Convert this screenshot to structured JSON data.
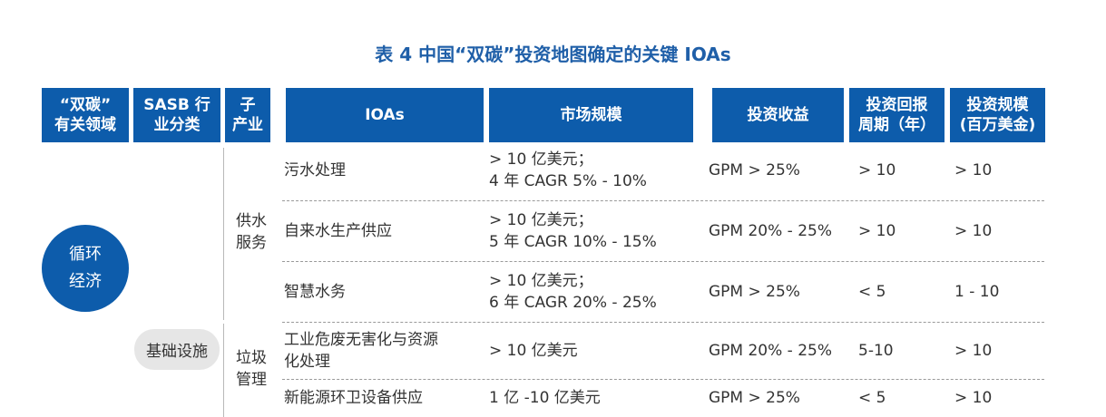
{
  "title": "表 4  中国“双碳”投资地图确定的关键 IOAs",
  "headers": [
    "“双碳”\n有关领域",
    "SASB 行\n业分类",
    "子\n产业",
    "IOAs",
    "市场规模",
    "投资收益",
    "投资回报\n周期（年）",
    "投资规模\n(百万美金)"
  ],
  "domain_label": "循环\n经济",
  "sasb_label": "基础设施",
  "subindustries": [
    "供水\n服务",
    "垃圾\n管理"
  ],
  "rows": [
    {
      "ioa": "污水处理",
      "market": "> 10 亿美元；\n4 年 CAGR 5% - 10%",
      "return": "GPM > 25%",
      "period": "> 10",
      "scale": "> 10"
    },
    {
      "ioa": "自来水生产供应",
      "market": "> 10 亿美元；\n5 年 CAGR 10% - 15%",
      "return": "GPM 20% - 25%",
      "period": "> 10",
      "scale": "> 10"
    },
    {
      "ioa": "智慧水务",
      "market": "> 10 亿美元；\n6 年 CAGR 20% - 25%",
      "return": "GPM > 25%",
      "period": "< 5",
      "scale": "1 - 10"
    },
    {
      "ioa": "工业危废无害化与资源\n化处理",
      "market": "> 10 亿美元",
      "return": "GPM 20% - 25%",
      "period": "5-10",
      "scale": "> 10"
    },
    {
      "ioa": "新能源环卫设备供应",
      "market": "1 亿 -10 亿美元",
      "return": "GPM > 25%",
      "period": "< 5",
      "scale": "> 10"
    }
  ]
}
